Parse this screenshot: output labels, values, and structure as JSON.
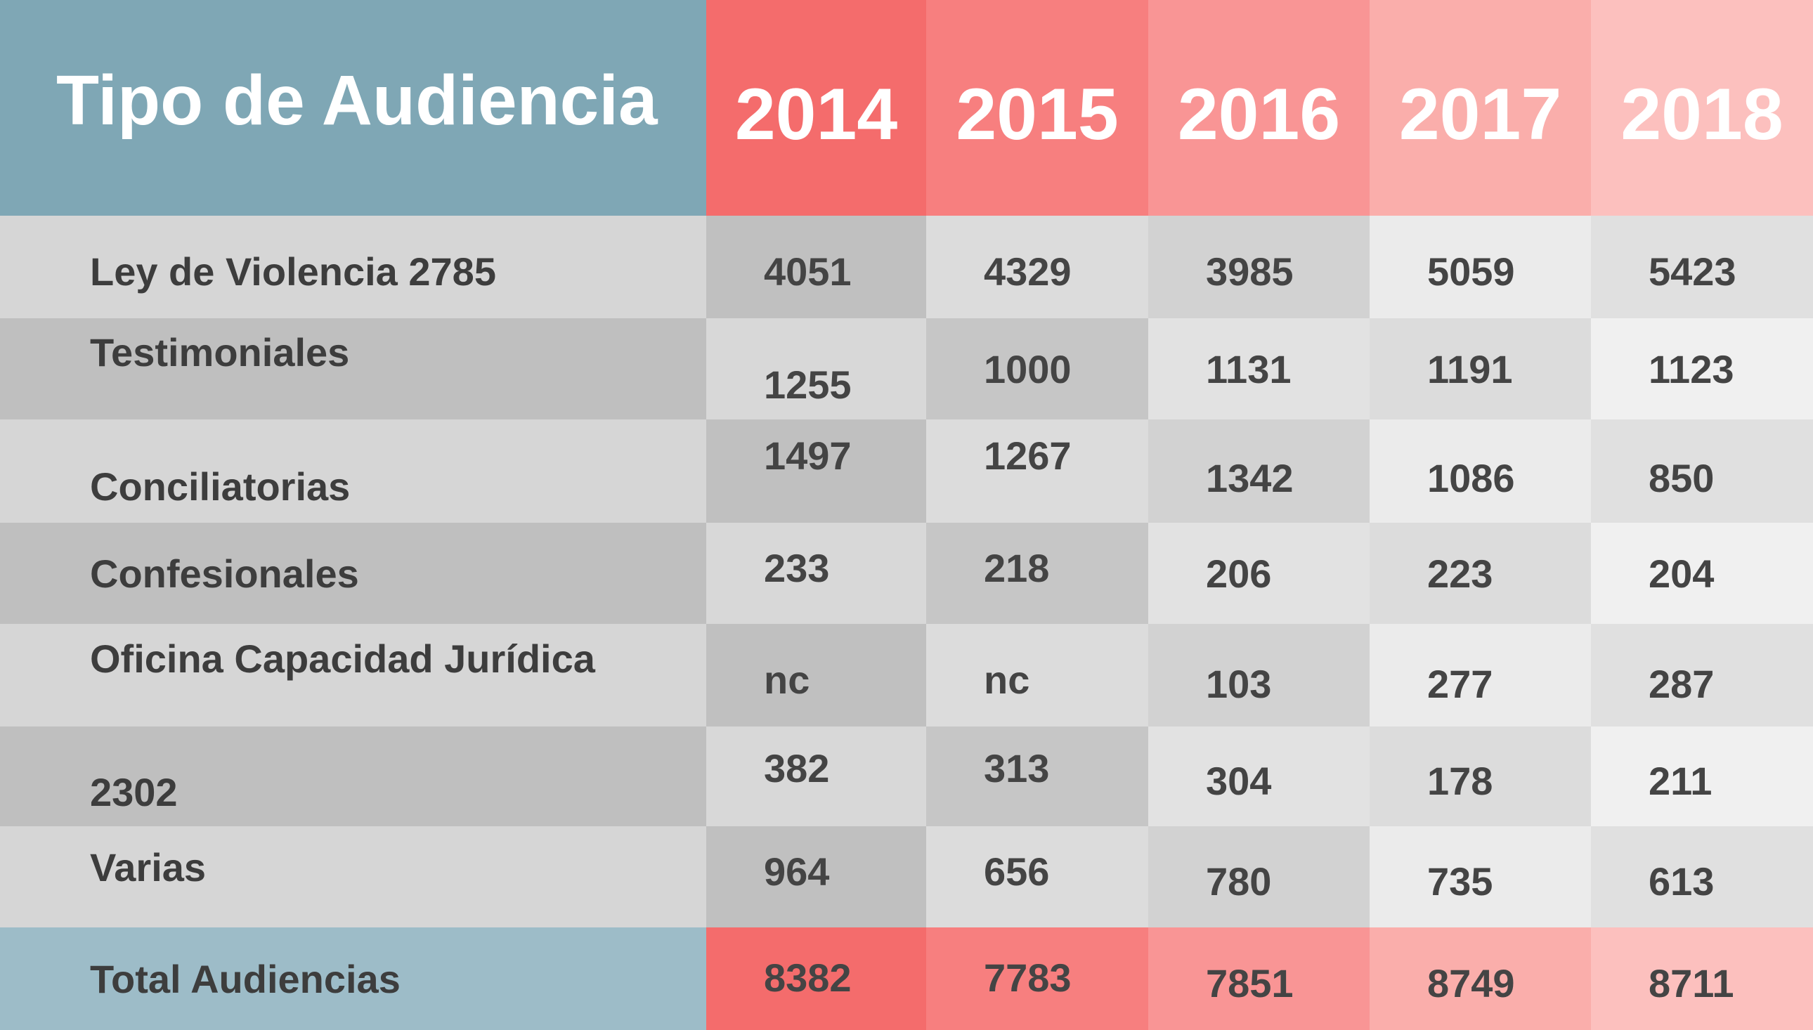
{
  "colors": {
    "header_label_bg": "#7fa7b5",
    "total_label_bg": "#9dbcc8",
    "year_header_bg": [
      "#f46c6c",
      "#f77f7f",
      "#f99595",
      "#faaeab",
      "#fcc0be"
    ],
    "total_row_bg": [
      "#f46c6c",
      "#f77f7f",
      "#f99595",
      "#faaeab",
      "#fcc0be"
    ],
    "text_dark": "#444444"
  },
  "chart_data": {
    "type": "table",
    "header_label": "Tipo de Audiencia",
    "columns": [
      "2014",
      "2015",
      "2016",
      "2017",
      "2018"
    ],
    "rows": [
      {
        "label": "Ley de Violencia 2785",
        "values": [
          "4051",
          "4329",
          "3985",
          "5059",
          "5423"
        ]
      },
      {
        "label": "Testimoniales",
        "values": [
          "1255",
          "1000",
          "1131",
          "1191",
          "1123"
        ]
      },
      {
        "label": "Conciliatorias",
        "values": [
          "1497",
          "1267",
          "1342",
          "1086",
          "850"
        ]
      },
      {
        "label": "Confesionales",
        "values": [
          "233",
          "218",
          "206",
          "223",
          "204"
        ]
      },
      {
        "label": "Oficina Capacidad Jurídica",
        "values": [
          "nc",
          "nc",
          "103",
          "277",
          "287"
        ]
      },
      {
        "label": "2302",
        "values": [
          "382",
          "313",
          "304",
          "178",
          "211"
        ]
      },
      {
        "label": "Varias",
        "values": [
          "964",
          "656",
          "780",
          "735",
          "613"
        ]
      }
    ],
    "total": {
      "label": "Total Audiencias",
      "values": [
        "8382",
        "7783",
        "7851",
        "8749",
        "8711"
      ]
    }
  }
}
